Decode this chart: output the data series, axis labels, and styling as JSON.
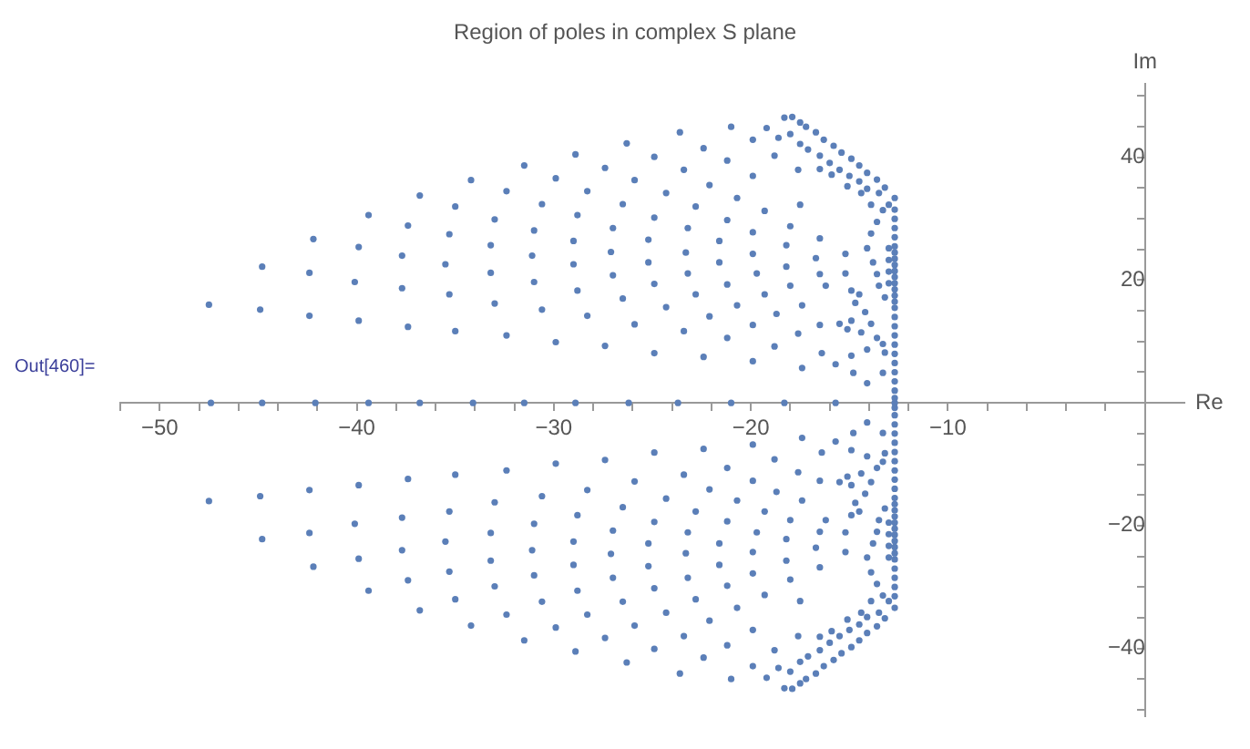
{
  "chart_data": {
    "type": "scatter",
    "title": "Region of poles in complex S plane",
    "xlabel": "Re",
    "ylabel": "Im",
    "annotations": [
      "Out[460]="
    ],
    "marker": "circle",
    "xlim": [
      -52,
      2
    ],
    "ylim": [
      -51,
      52
    ],
    "xticks": [
      {
        "value": -52,
        "label": null
      },
      -50,
      {
        "value": -48,
        "label": null
      },
      {
        "value": -46,
        "label": null
      },
      {
        "value": -44,
        "label": null
      },
      {
        "value": -42,
        "label": null
      },
      -40,
      {
        "value": -38,
        "label": null
      },
      {
        "value": -36,
        "label": null
      },
      {
        "value": -34,
        "label": null
      },
      {
        "value": -32,
        "label": null
      },
      -30,
      {
        "value": -28,
        "label": null
      },
      {
        "value": -26,
        "label": null
      },
      {
        "value": -24,
        "label": null
      },
      {
        "value": -22,
        "label": null
      },
      -20,
      {
        "value": -18,
        "label": null
      },
      {
        "value": -16,
        "label": null
      },
      {
        "value": -14,
        "label": null
      },
      {
        "value": -12,
        "label": null
      },
      -10,
      {
        "value": -8,
        "label": null
      },
      {
        "value": -6,
        "label": null
      },
      {
        "value": -4,
        "label": null
      },
      {
        "value": -2,
        "label": null
      }
    ],
    "yticks": [
      {
        "value": -50,
        "label": null
      },
      {
        "value": -45,
        "label": null
      },
      -40,
      {
        "value": -35,
        "label": null
      },
      {
        "value": -30,
        "label": null
      },
      {
        "value": -25,
        "label": null
      },
      -20,
      {
        "value": -15,
        "label": null
      },
      {
        "value": -10,
        "label": null
      },
      {
        "value": -5,
        "label": null
      },
      {
        "value": 5,
        "label": null
      },
      {
        "value": 10,
        "label": null
      },
      {
        "value": 15,
        "label": null
      },
      20,
      {
        "value": 25,
        "label": null
      },
      {
        "value": 30,
        "label": null
      },
      {
        "value": 35,
        "label": null
      },
      40,
      {
        "value": 45,
        "label": null
      },
      {
        "value": 50,
        "label": null
      }
    ],
    "series": [
      {
        "color": "#5b7fb8",
        "x": [
          -47.5,
          -44.8,
          -44.9,
          -42.2,
          -42.4,
          -42.4,
          -39.4,
          -39.9,
          -40.1,
          -39.9,
          -36.8,
          -37.4,
          -37.7,
          -37.7,
          -37.4,
          -34.2,
          -35.0,
          -35.3,
          -35.5,
          -35.3,
          -35.0,
          -31.5,
          -32.4,
          -33.0,
          -33.2,
          -33.2,
          -33.0,
          -32.4,
          -28.9,
          -29.9,
          -30.6,
          -31.0,
          -31.1,
          -31.0,
          -30.6,
          -29.9,
          -26.3,
          -27.4,
          -28.3,
          -28.8,
          -29.0,
          -29.0,
          -28.8,
          -28.3,
          -27.4,
          -25.9,
          -26.5,
          -27.0,
          -27.1,
          -27.0,
          -26.5,
          -25.9
        ],
        "values": [
          16.0,
          22.2,
          15.2,
          26.7,
          21.2,
          14.2,
          30.6,
          25.4,
          19.7,
          13.4,
          33.8,
          28.9,
          24.0,
          18.7,
          12.4,
          36.3,
          32.0,
          27.5,
          22.6,
          17.7,
          11.7,
          38.7,
          34.5,
          29.9,
          25.7,
          21.2,
          16.2,
          11.0,
          40.5,
          36.6,
          32.4,
          28.1,
          24.0,
          19.7,
          15.2,
          9.9,
          42.3,
          38.3,
          34.5,
          30.6,
          26.4,
          22.6,
          18.3,
          14.2,
          9.3,
          36.3,
          32.4,
          28.5,
          24.6,
          20.8,
          17.0,
          12.8
        ]
      },
      {
        "color": "#5b7fb8",
        "x": [
          -24.9,
          -23.6,
          -22.4,
          -21.0,
          -23.4,
          -24.3,
          -22.1,
          -21.2,
          -19.9,
          -19.2,
          -22.8,
          -20.7,
          -19.9,
          -18.8,
          -24.9,
          -23.2,
          -21.2,
          -19.3,
          -17.5,
          -25.2,
          -23.3,
          -21.6,
          -19.9,
          -18.0,
          -16.5,
          -25.2,
          -23.2,
          -21.6,
          -19.9,
          -18.2,
          -16.7,
          -15.2,
          -24.9,
          -22.8,
          -21.2,
          -19.7,
          -18.2,
          -16.5,
          -15.2,
          -24.3,
          -22.1,
          -20.7,
          -19.3,
          -18.0,
          -16.2,
          -14.9,
          -17.4,
          -23.4,
          -21.2,
          -19.9,
          -18.7,
          -17.6,
          -16.5,
          -24.9,
          -22.4,
          -19.9,
          -18.8,
          -17.4,
          -16.4,
          -15.7
        ],
        "values": [
          40.1,
          44.1,
          41.5,
          45.0,
          38.0,
          34.2,
          35.5,
          39.5,
          42.9,
          44.8,
          32.0,
          33.4,
          37.0,
          40.3,
          30.2,
          28.5,
          29.8,
          31.3,
          32.3,
          26.6,
          24.5,
          26.4,
          27.8,
          28.8,
          26.8,
          22.9,
          21.1,
          22.9,
          24.3,
          25.7,
          23.6,
          24.3,
          19.4,
          17.7,
          19.3,
          21.1,
          22.2,
          21.0,
          21.1,
          15.6,
          14.1,
          15.9,
          17.7,
          19.1,
          19.1,
          18.3,
          15.9,
          11.7,
          10.6,
          12.7,
          14.5,
          11.3,
          12.7,
          8.1,
          7.5,
          6.8,
          9.2,
          5.7,
          8.1,
          6.3
        ]
      },
      {
        "color": "#5b7fb8",
        "x": [
          -18.3,
          -17.9,
          -17.5,
          -17.2,
          -16.7,
          -16.3,
          -15.8,
          -15.4,
          -14.9,
          -14.5,
          -14.1,
          -13.6,
          -13.2,
          -12.7,
          -18.6,
          -18.0,
          -17.5,
          -17.1,
          -16.5,
          -16.0,
          -15.5,
          -15.0,
          -14.5,
          -14.1,
          -13.5,
          -13.0,
          -17.6,
          -16.5,
          -15.9,
          -15.1,
          -14.4,
          -13.9,
          -13.3
        ],
        "values": [
          46.5,
          46.6,
          45.7,
          45.0,
          44.1,
          42.9,
          41.9,
          40.8,
          39.8,
          38.7,
          37.5,
          36.4,
          35.1,
          33.4,
          43.2,
          43.8,
          42.2,
          41.3,
          40.3,
          39.1,
          38.0,
          37.0,
          36.1,
          34.9,
          34.2,
          32.3,
          38.0,
          38.1,
          37.2,
          35.3,
          34.2,
          32.3,
          31.4
        ]
      },
      {
        "color": "#5b7fb8",
        "x": [
          -13.6,
          -13.9,
          -14.1,
          -13.8,
          -13.6,
          -13.5,
          -13.2,
          -14.7,
          -14.5,
          -14.2,
          -14.9,
          -15.5,
          -15.1,
          -14.4,
          -13.9,
          -13.6,
          -13.3,
          -14.1,
          -14.9,
          -14.8,
          -14.1,
          -13.3,
          -13.2,
          -13.0,
          -13.0,
          -13.0,
          -13.0
        ],
        "values": [
          29.5,
          27.6,
          25.2,
          22.9,
          21.0,
          19.1,
          17.2,
          16.3,
          17.7,
          14.8,
          13.4,
          12.9,
          12.0,
          11.5,
          12.9,
          10.6,
          9.6,
          8.7,
          7.7,
          4.9,
          3.2,
          4.9,
          8.2,
          25.2,
          23.3,
          21.4,
          19.5
        ]
      },
      {
        "color": "#5b7fb8",
        "x": [
          -12.7,
          -12.7,
          -12.7,
          -12.7,
          -12.7,
          -12.7,
          -12.7,
          -12.7,
          -12.7,
          -12.7,
          -12.7,
          -12.7,
          -12.7,
          -12.7,
          -12.7,
          -12.7,
          -12.7,
          -12.7,
          -12.7,
          -12.7,
          -12.7,
          -12.7,
          -12.7,
          -12.7,
          -12.7
        ],
        "values": [
          31.5,
          30.0,
          28.5,
          27.0,
          25.5,
          24.5,
          23.5,
          22.5,
          21.5,
          20.5,
          19.5,
          18.5,
          17.5,
          16.5,
          15.5,
          14.0,
          12.5,
          11.0,
          9.5,
          8.0,
          6.5,
          5.0,
          3.5,
          2.0,
          0.8
        ]
      },
      {
        "color": "#5b7fb8",
        "x": [
          -47.4,
          -44.8,
          -42.1,
          -39.4,
          -36.8,
          -34.1,
          -31.5,
          -28.9,
          -26.2,
          -23.7,
          -21.0,
          -18.3,
          -15.7,
          -12.7
        ],
        "values": [
          0,
          0,
          0,
          0,
          0,
          0,
          0,
          0,
          0,
          0,
          0,
          0,
          0,
          0
        ]
      },
      {
        "color": "#5b7fb8",
        "x": [
          -47.5,
          -44.8,
          -44.9,
          -42.2,
          -42.4,
          -42.4,
          -39.4,
          -39.9,
          -40.1,
          -39.9,
          -36.8,
          -37.4,
          -37.7,
          -37.7,
          -37.4,
          -34.2,
          -35.0,
          -35.3,
          -35.5,
          -35.3,
          -35.0,
          -31.5,
          -32.4,
          -33.0,
          -33.2,
          -33.2,
          -33.0,
          -32.4,
          -28.9,
          -29.9,
          -30.6,
          -31.0,
          -31.1,
          -31.0,
          -30.6,
          -29.9,
          -26.3,
          -27.4,
          -28.3,
          -28.8,
          -29.0,
          -29.0,
          -28.8,
          -28.3,
          -27.4,
          -25.9,
          -26.5,
          -27.0,
          -27.1,
          -27.0,
          -26.5,
          -25.9
        ],
        "values": [
          -16.0,
          -22.2,
          -15.2,
          -26.7,
          -21.2,
          -14.2,
          -30.6,
          -25.4,
          -19.7,
          -13.4,
          -33.8,
          -28.9,
          -24.0,
          -18.7,
          -12.4,
          -36.3,
          -32.0,
          -27.5,
          -22.6,
          -17.7,
          -11.7,
          -38.7,
          -34.5,
          -29.9,
          -25.7,
          -21.2,
          -16.2,
          -11.0,
          -40.5,
          -36.6,
          -32.4,
          -28.1,
          -24.0,
          -19.7,
          -15.2,
          -9.9,
          -42.3,
          -38.3,
          -34.5,
          -30.6,
          -26.4,
          -22.6,
          -18.3,
          -14.2,
          -9.3,
          -36.3,
          -32.4,
          -28.5,
          -24.6,
          -20.8,
          -17.0,
          -12.8
        ]
      },
      {
        "color": "#5b7fb8",
        "x": [
          -24.9,
          -23.6,
          -22.4,
          -21.0,
          -23.4,
          -24.3,
          -22.1,
          -21.2,
          -19.9,
          -19.2,
          -22.8,
          -20.7,
          -19.9,
          -18.8,
          -24.9,
          -23.2,
          -21.2,
          -19.3,
          -17.5,
          -25.2,
          -23.3,
          -21.6,
          -19.9,
          -18.0,
          -16.5,
          -25.2,
          -23.2,
          -21.6,
          -19.9,
          -18.2,
          -16.7,
          -15.2,
          -24.9,
          -22.8,
          -21.2,
          -19.7,
          -18.2,
          -16.5,
          -15.2,
          -24.3,
          -22.1,
          -20.7,
          -19.3,
          -18.0,
          -16.2,
          -14.9,
          -17.4,
          -23.4,
          -21.2,
          -19.9,
          -18.7,
          -17.6,
          -16.5,
          -24.9,
          -22.4,
          -19.9,
          -18.8,
          -17.4,
          -16.4,
          -15.7
        ],
        "values": [
          -40.1,
          -44.1,
          -41.5,
          -45.0,
          -38.0,
          -34.2,
          -35.5,
          -39.5,
          -42.9,
          -44.8,
          -32.0,
          -33.4,
          -37.0,
          -40.3,
          -30.2,
          -28.5,
          -29.8,
          -31.3,
          -32.3,
          -26.6,
          -24.5,
          -26.4,
          -27.8,
          -28.8,
          -26.8,
          -22.9,
          -21.1,
          -22.9,
          -24.3,
          -25.7,
          -23.6,
          -24.3,
          -19.4,
          -17.7,
          -19.3,
          -21.1,
          -22.2,
          -21.0,
          -21.1,
          -15.6,
          -14.1,
          -15.9,
          -17.7,
          -19.1,
          -19.1,
          -18.3,
          -15.9,
          -11.7,
          -10.6,
          -12.7,
          -14.5,
          -11.3,
          -12.7,
          -8.1,
          -7.5,
          -6.8,
          -9.2,
          -5.7,
          -8.1,
          -6.3
        ]
      },
      {
        "color": "#5b7fb8",
        "x": [
          -18.3,
          -17.9,
          -17.5,
          -17.2,
          -16.7,
          -16.3,
          -15.8,
          -15.4,
          -14.9,
          -14.5,
          -14.1,
          -13.6,
          -13.2,
          -12.7,
          -18.6,
          -18.0,
          -17.5,
          -17.1,
          -16.5,
          -16.0,
          -15.5,
          -15.0,
          -14.5,
          -14.1,
          -13.5,
          -13.0,
          -17.6,
          -16.5,
          -15.9,
          -15.1,
          -14.4,
          -13.9,
          -13.3
        ],
        "values": [
          -46.5,
          -46.6,
          -45.7,
          -45.0,
          -44.1,
          -42.9,
          -41.9,
          -40.8,
          -39.8,
          -38.7,
          -37.5,
          -36.4,
          -35.1,
          -33.4,
          -43.2,
          -43.8,
          -42.2,
          -41.3,
          -40.3,
          -39.1,
          -38.0,
          -37.0,
          -36.1,
          -34.9,
          -34.2,
          -32.3,
          -38.0,
          -38.1,
          -37.2,
          -35.3,
          -34.2,
          -32.3,
          -31.4
        ]
      },
      {
        "color": "#5b7fb8",
        "x": [
          -13.6,
          -13.9,
          -14.1,
          -13.8,
          -13.6,
          -13.5,
          -13.2,
          -14.7,
          -14.5,
          -14.2,
          -14.9,
          -15.5,
          -15.1,
          -14.4,
          -13.9,
          -13.6,
          -13.3,
          -14.1,
          -14.9,
          -14.8,
          -14.1,
          -13.3,
          -13.2,
          -13.0,
          -13.0,
          -13.0,
          -13.0
        ],
        "values": [
          -29.5,
          -27.6,
          -25.2,
          -22.9,
          -21.0,
          -19.1,
          -17.2,
          -16.3,
          -17.7,
          -14.8,
          -13.4,
          -12.9,
          -12.0,
          -11.5,
          -12.9,
          -10.6,
          -9.6,
          -8.7,
          -7.7,
          -4.9,
          -3.2,
          -4.9,
          -8.2,
          -25.2,
          -23.3,
          -21.4,
          -19.5
        ]
      },
      {
        "color": "#5b7fb8",
        "x": [
          -12.7,
          -12.7,
          -12.7,
          -12.7,
          -12.7,
          -12.7,
          -12.7,
          -12.7,
          -12.7,
          -12.7,
          -12.7,
          -12.7,
          -12.7,
          -12.7,
          -12.7,
          -12.7,
          -12.7,
          -12.7,
          -12.7,
          -12.7,
          -12.7,
          -12.7,
          -12.7,
          -12.7,
          -12.7
        ],
        "values": [
          -31.5,
          -30.0,
          -28.5,
          -27.0,
          -25.5,
          -24.5,
          -23.5,
          -22.5,
          -21.5,
          -20.5,
          -19.5,
          -18.5,
          -17.5,
          -16.5,
          -15.5,
          -14.0,
          -12.5,
          -11.0,
          -9.5,
          -8.0,
          -6.5,
          -5.0,
          -3.5,
          -2.0,
          -0.8
        ]
      }
    ]
  }
}
